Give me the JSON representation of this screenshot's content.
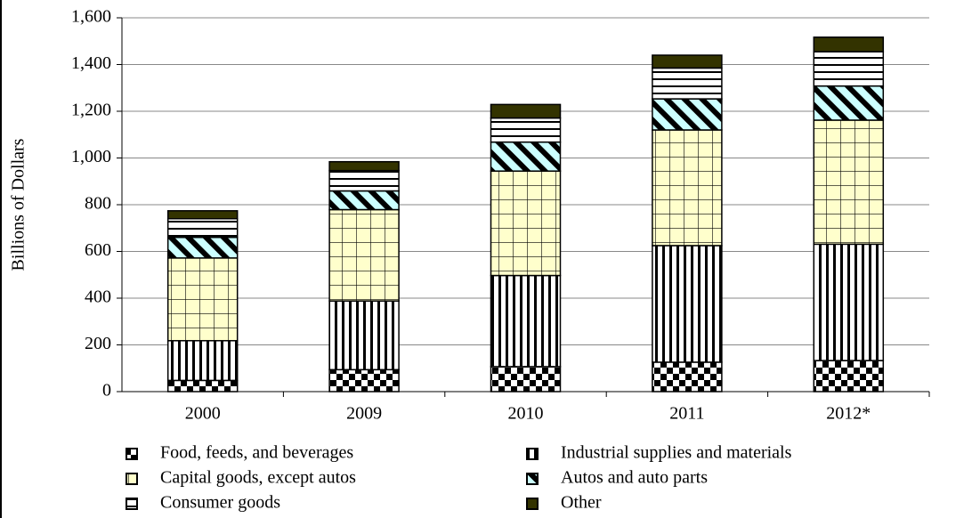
{
  "chart_data": {
    "type": "bar",
    "stacked": true,
    "y_label": "Billions of Dollars",
    "categories": [
      "2000",
      "2009",
      "2010",
      "2011",
      "2012*"
    ],
    "series": [
      {
        "name": "Food, feeds, and beverages",
        "color": "#000000",
        "values": [
          48,
          94,
          107,
          126,
          133
        ]
      },
      {
        "name": "Industrial supplies and materials",
        "color": "#000000",
        "values": [
          170,
          294,
          390,
          499,
          498
        ]
      },
      {
        "name": "Capital goods, except autos",
        "color": "#ffffcc",
        "values": [
          354,
          391,
          447,
          495,
          531
        ]
      },
      {
        "name": "Autos and auto parts",
        "color": "#ccffff",
        "values": [
          88,
          80,
          124,
          133,
          146
        ]
      },
      {
        "name": "Consumer goods",
        "color": "#ffffff",
        "values": [
          80,
          87,
          103,
          132,
          147
        ]
      },
      {
        "name": "Other",
        "color": "#333300",
        "values": [
          34,
          38,
          58,
          55,
          62
        ]
      }
    ],
    "ylim": [
      0,
      1600
    ],
    "yticks": [
      0,
      200,
      400,
      600,
      800,
      {
        "value": 1000,
        "label": "1,000"
      },
      {
        "value": 1200,
        "label": "1,200"
      },
      {
        "value": 1400,
        "label": "1,400"
      },
      {
        "value": 1600,
        "label": "1,600"
      }
    ],
    "grid": true,
    "legend": "bottom"
  }
}
